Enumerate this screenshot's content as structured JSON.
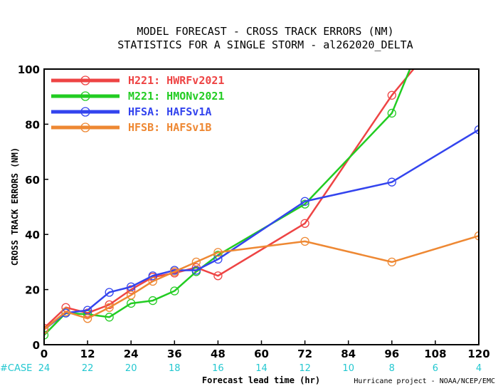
{
  "chart_data": {
    "type": "line",
    "title": [
      "MODEL FORECAST - CROSS TRACK ERRORS (NM)",
      "STATISTICS FOR A SINGLE STORM - al262020_DELTA"
    ],
    "xlabel": "Forecast lead time (hr)",
    "ylabel": "CROSS TRACK ERRORS (NM)",
    "xlim": [
      0,
      120
    ],
    "ylim": [
      0,
      100
    ],
    "xticks": [
      0,
      12,
      24,
      36,
      48,
      60,
      72,
      84,
      96,
      108,
      120
    ],
    "yticks": [
      0,
      20,
      40,
      60,
      80,
      100
    ],
    "case_label": "#CASE",
    "case_counts": [
      24,
      22,
      20,
      18,
      16,
      14,
      12,
      10,
      8,
      6,
      4
    ],
    "credit": "Hurricane project - NOAA/NCEP/EMC",
    "legend_position": "top-left",
    "grid": false,
    "series": [
      {
        "name": "H221: HWRFv2021",
        "color": "#ee4444",
        "x": [
          0,
          6,
          12,
          18,
          24,
          30,
          36,
          42,
          48,
          72,
          96,
          102
        ],
        "y": [
          6,
          13.5,
          11.5,
          14.5,
          20,
          24.5,
          26,
          28,
          25,
          44,
          90.5,
          100
        ],
        "markers": [
          true,
          true,
          true,
          true,
          true,
          true,
          true,
          true,
          true,
          true,
          true,
          false
        ]
      },
      {
        "name": "M221: HMONv2021",
        "color": "#22cc22",
        "x": [
          0,
          6,
          12,
          18,
          24,
          30,
          36,
          42,
          48,
          72,
          96,
          101
        ],
        "y": [
          3.5,
          11.5,
          11,
          10,
          15,
          16,
          19.5,
          26.5,
          32.5,
          51,
          84,
          100
        ],
        "markers": [
          true,
          true,
          true,
          true,
          true,
          true,
          true,
          true,
          true,
          true,
          true,
          false
        ]
      },
      {
        "name": "HFSA: HAFSv1A",
        "color": "#3344ee",
        "x": [
          0,
          6,
          12,
          18,
          24,
          30,
          36,
          42,
          48,
          72,
          96,
          120
        ],
        "y": [
          5.5,
          11.5,
          12.5,
          19,
          21,
          25,
          27,
          27,
          31,
          52,
          59,
          78
        ],
        "markers": [
          true,
          true,
          true,
          true,
          true,
          true,
          true,
          true,
          true,
          true,
          true,
          true
        ]
      },
      {
        "name": "HFSB: HAFSv1B",
        "color": "#ee8833",
        "x": [
          0,
          6,
          12,
          18,
          24,
          30,
          36,
          42,
          48,
          72,
          96,
          120
        ],
        "y": [
          5.5,
          12,
          9.5,
          13.5,
          18,
          23,
          26.5,
          30,
          33.5,
          37.5,
          30,
          39.5
        ],
        "markers": [
          true,
          true,
          true,
          true,
          true,
          true,
          true,
          true,
          true,
          true,
          true,
          true
        ]
      }
    ]
  }
}
